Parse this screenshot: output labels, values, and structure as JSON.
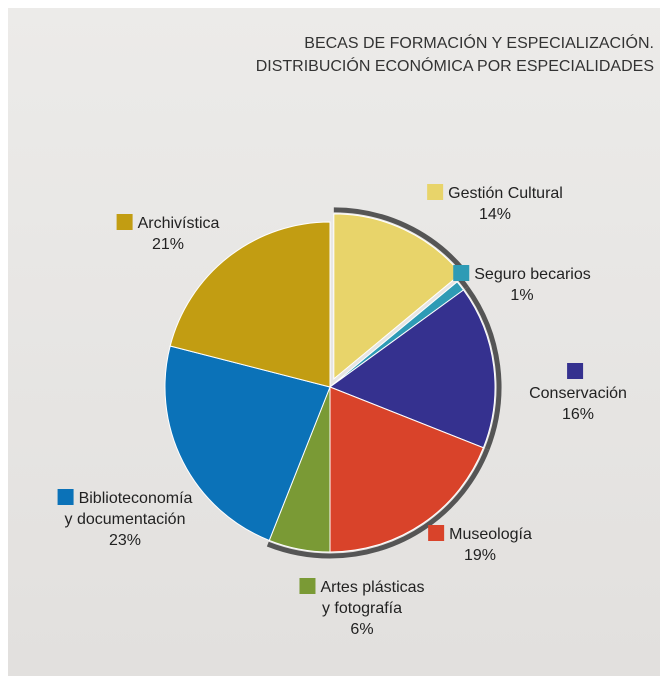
{
  "chart_data": {
    "type": "pie",
    "title": [
      "BECAS DE FORMACIÓN Y ESPECIALIZACIÓN.",
      "DISTRIBUCIÓN ECONÓMICA POR ESPECIALIDADES"
    ],
    "categories": [
      "Gestión Cultural",
      "Seguro becarios",
      "Conservación",
      "Museología",
      "Artes plásticas\ny fotografía",
      "Biblioteconomía\ny documentación",
      "Archivística"
    ],
    "values": [
      14,
      1,
      16,
      19,
      6,
      23,
      21
    ],
    "value_labels": [
      "14%",
      "1%",
      "16%",
      "19%",
      "6%",
      "23%",
      "21%"
    ],
    "colors": [
      "#e8d46a",
      "#2e9bb5",
      "#35318f",
      "#d9432a",
      "#7a9a35",
      "#0b72b8",
      "#c29d12"
    ],
    "exploded": [
      0
    ]
  }
}
